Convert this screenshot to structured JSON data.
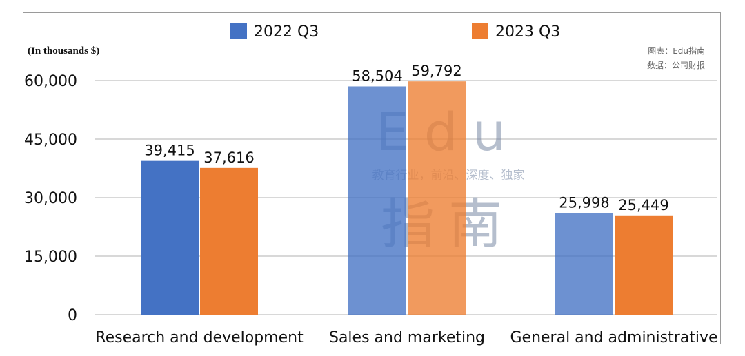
{
  "chart_data": {
    "type": "bar",
    "categories": [
      "Research and development",
      "Sales and marketing",
      "General and administrative"
    ],
    "series": [
      {
        "name": "2022 Q3",
        "values": [
          39415,
          58504,
          25998
        ]
      },
      {
        "name": "2023 Q3",
        "values": [
          37616,
          59792,
          25449
        ]
      }
    ],
    "data_labels": [
      [
        "39,415",
        "58,504",
        "25,998"
      ],
      [
        "37,616",
        "59,792",
        "25,449"
      ]
    ],
    "y_ticks": [
      "0",
      "15,000",
      "30,000",
      "45,000",
      "60,000"
    ],
    "y_tick_values": [
      0,
      15000,
      30000,
      45000,
      60000
    ],
    "ylim": [
      0,
      60000
    ],
    "unit_note": "(In thousands $)",
    "grid": true,
    "legend_position": "top"
  },
  "colors": {
    "series_1": "#4472c4",
    "series_2": "#ed7d31",
    "grid": "#b0b0b0"
  },
  "source": {
    "line1": "图表：Edu指南",
    "line2": "数据：公司财报"
  },
  "watermark": {
    "brand": "Edu",
    "tagline": "教育行业，前沿、深度、独家",
    "cn": "指南"
  }
}
